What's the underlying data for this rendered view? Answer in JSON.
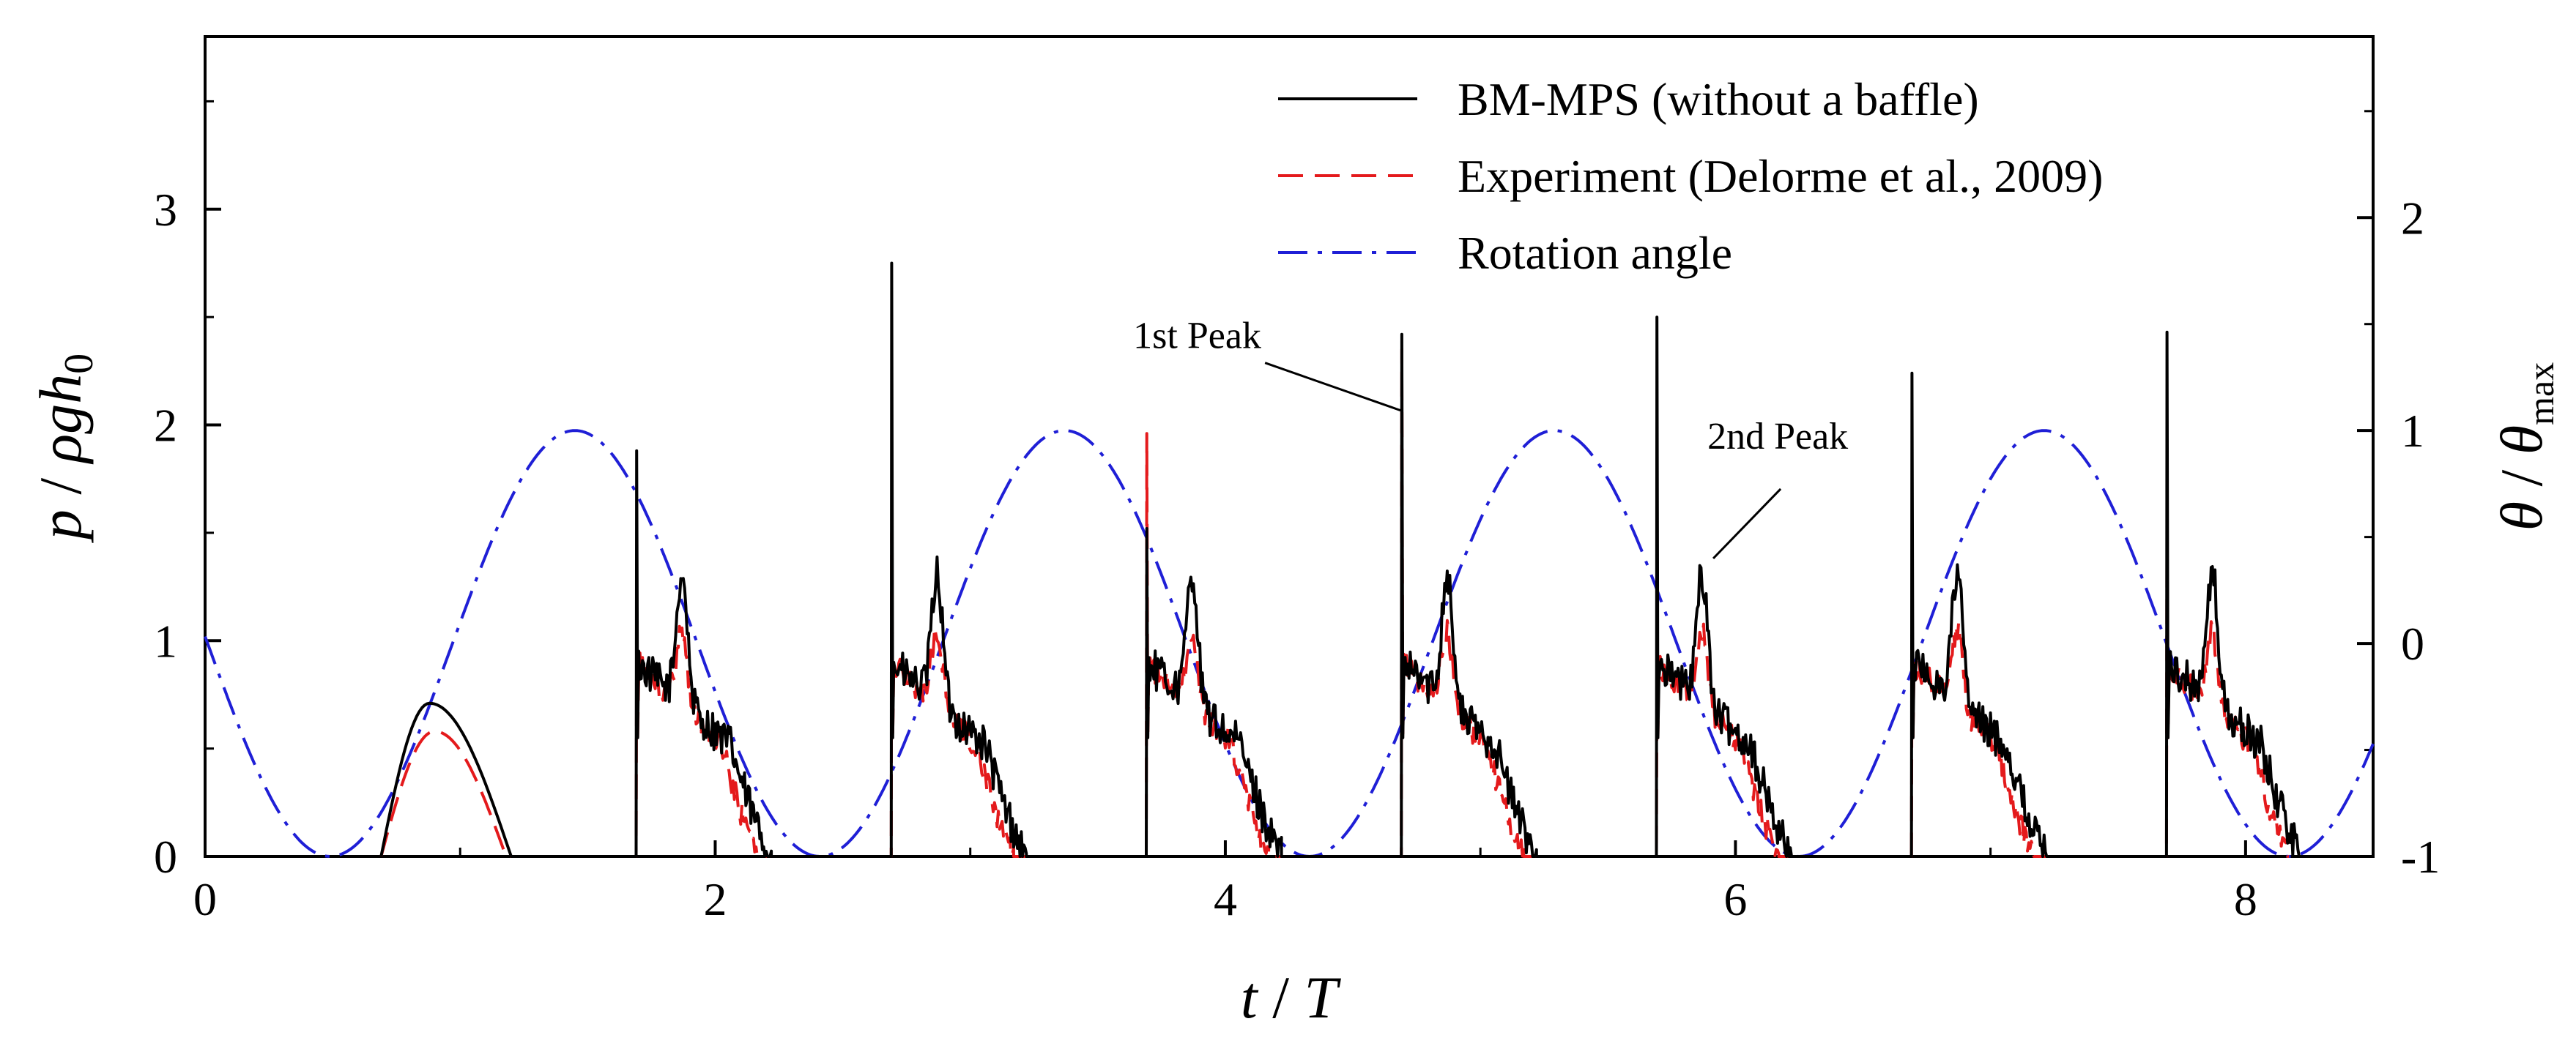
{
  "chart_data": {
    "type": "line",
    "title": "",
    "xlabel": {
      "main": "t",
      "sep": " / ",
      "denom": "T"
    },
    "ylabel_left": {
      "num": "p",
      "sep": " / ",
      "rho": "ρ",
      "g": "g",
      "h": "h",
      "sub": "0"
    },
    "ylabel_right": {
      "theta": "θ",
      "sep": " / ",
      "theta2": "θ",
      "sub": "max"
    },
    "xlim": [
      0,
      8.5
    ],
    "ylim_left": [
      0,
      3.8
    ],
    "ylim_right": [
      -1,
      2.85
    ],
    "x_ticks": [
      0,
      2,
      4,
      6,
      8
    ],
    "y_ticks_left": [
      0,
      1,
      2,
      3
    ],
    "y_ticks_right": [
      -1,
      0,
      1,
      2
    ],
    "grid": false,
    "legend_position": "top-right",
    "colors": {
      "simulation": "#000000",
      "experiment": "#e41a1c",
      "rotation": "#1f1fd6"
    },
    "series": [
      {
        "name": "BM-MPS (without a baffle)",
        "style": "solid",
        "axis": "left",
        "period": 1.0,
        "first_impact_t": 1.69,
        "impact_peaks": [
          1.88,
          2.75,
          1.52,
          2.42,
          2.5,
          2.24,
          2.43
        ],
        "initial_hump": {
          "start": 0.69,
          "peak_t": 0.88,
          "peak": 0.71,
          "end": 1.2
        }
      },
      {
        "name": "Experiment (Delorme et al., 2009)",
        "style": "dashed",
        "axis": "left",
        "period": 1.0,
        "first_impact_t": 1.69,
        "impact_peaks": [
          1.0,
          1.5,
          1.96,
          2.35,
          0.9,
          0.95,
          1.63
        ],
        "initial_hump": {
          "start": 0.69,
          "peak_t": 0.9,
          "peak": 0.58,
          "end": 1.18
        }
      },
      {
        "name": "Rotation angle",
        "style": "dash-dot",
        "axis": "right",
        "period": 1.92,
        "phase_peak_t": 1.45,
        "amplitude": 1.0
      }
    ],
    "annotations": [
      {
        "text": "1st Peak",
        "x": 4.73,
        "y": 2.22
      },
      {
        "text": "2nd Peak",
        "x": 5.89,
        "y": 1.5
      }
    ]
  }
}
